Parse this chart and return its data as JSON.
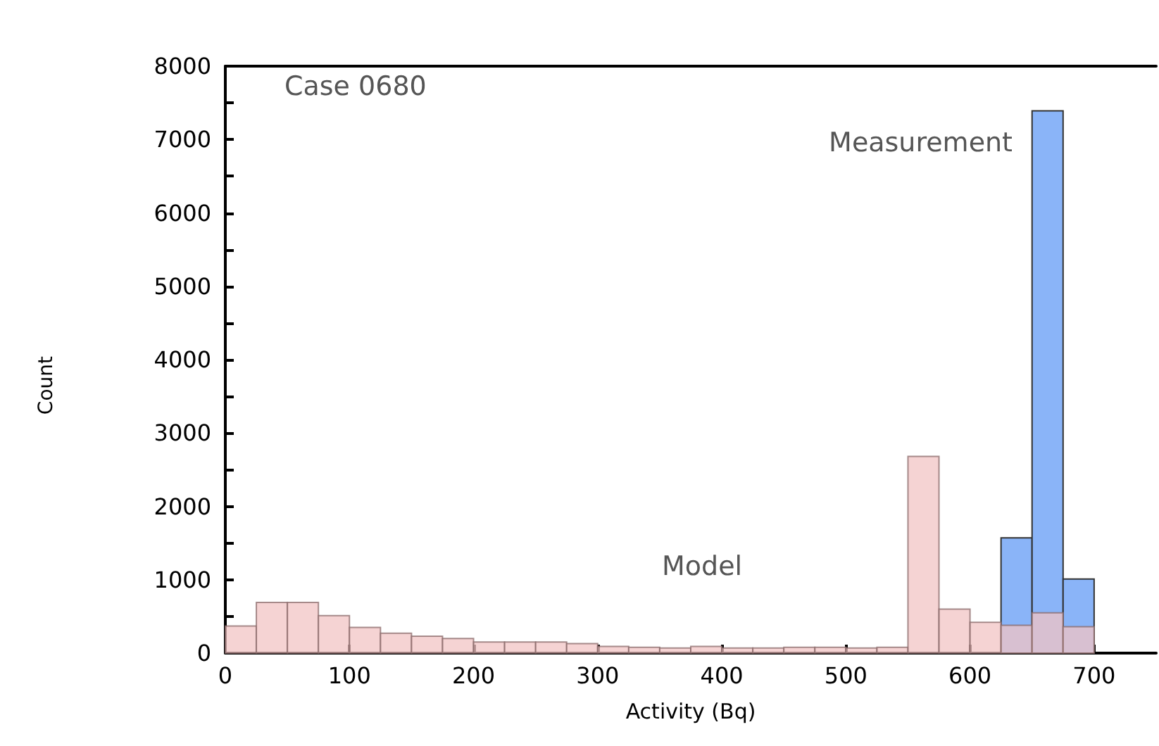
{
  "chart_data": {
    "type": "histogram",
    "xlabel": "Activity (Bq)",
    "ylabel": "Count",
    "annotations": [
      "Case 0680"
    ],
    "bins": [
      0,
      25,
      50,
      75,
      100,
      125,
      150,
      175,
      200,
      225,
      250,
      275,
      300,
      325,
      350,
      375,
      400,
      425,
      450,
      475,
      500,
      525,
      550,
      575,
      600,
      625,
      650,
      675,
      700
    ],
    "series": [
      {
        "name": "Measurement",
        "color": "#8ab4f8",
        "values": [
          0,
          0,
          0,
          0,
          0,
          0,
          0,
          0,
          0,
          0,
          0,
          0,
          0,
          0,
          0,
          0,
          0,
          0,
          0,
          0,
          0,
          0,
          0,
          0,
          0,
          1570,
          7390,
          1010
        ]
      },
      {
        "name": "Model",
        "color": "#f2c4c4",
        "values": [
          370,
          690,
          690,
          510,
          350,
          270,
          230,
          200,
          150,
          150,
          150,
          130,
          90,
          80,
          70,
          90,
          70,
          70,
          80,
          80,
          70,
          80,
          2680,
          600,
          420,
          380,
          550,
          360
        ]
      }
    ],
    "xlim": [
      0,
      750
    ],
    "xticks": [
      0,
      100,
      200,
      300,
      400,
      500,
      600,
      700
    ],
    "ylim": [
      0,
      8000
    ],
    "yticks": [
      0,
      {
        "value": 500,
        "label": null
      },
      1000,
      {
        "value": 1500,
        "label": null
      },
      2000,
      {
        "value": 2500,
        "label": null
      },
      3000,
      {
        "value": 3500,
        "label": null
      },
      4000,
      {
        "value": 4500,
        "label": null
      },
      5000,
      {
        "value": 5500,
        "label": null
      },
      6000,
      {
        "value": 6500,
        "label": null
      },
      7000,
      {
        "value": 7500,
        "label": null
      },
      8000
    ],
    "grid": false,
    "legend": false
  }
}
